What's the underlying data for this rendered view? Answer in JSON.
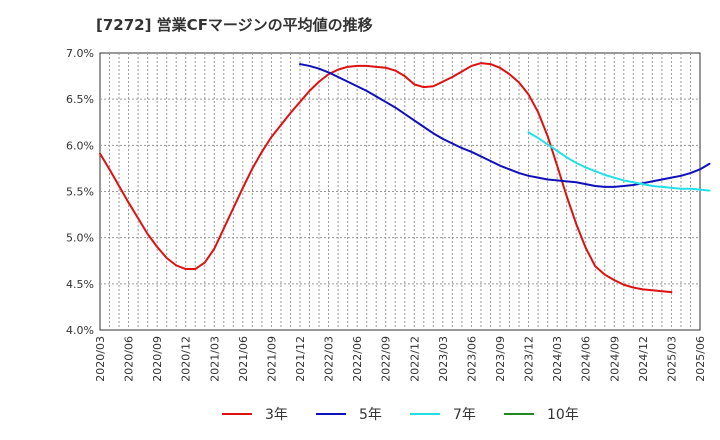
{
  "chart_data": {
    "type": "line",
    "title": "[7272]  営業CFマージンの平均値の推移",
    "xlabel": "",
    "ylabel": "",
    "ylim": [
      4.0,
      7.0
    ],
    "y_ticks": [
      "7.0%",
      "6.5%",
      "6.0%",
      "5.5%",
      "5.0%",
      "4.5%",
      "4.0%"
    ],
    "x_ticks": [
      "2020/03",
      "2020/06",
      "2020/09",
      "2020/12",
      "2021/03",
      "2021/06",
      "2021/09",
      "2021/12",
      "2022/03",
      "2022/06",
      "2022/09",
      "2022/12",
      "2023/03",
      "2023/06",
      "2023/09",
      "2023/12",
      "2024/03",
      "2024/06",
      "2024/09",
      "2024/12",
      "2025/03",
      "2025/06"
    ],
    "grid": true,
    "legend_position": "bottom",
    "series": [
      {
        "name": "3年",
        "color": "#dd1111",
        "points": [
          [
            "2020/03",
            5.91
          ],
          [
            "2020/04",
            5.74
          ],
          [
            "2020/05",
            5.56
          ],
          [
            "2020/06",
            5.38
          ],
          [
            "2020/07",
            5.21
          ],
          [
            "2020/08",
            5.04
          ],
          [
            "2020/09",
            4.9
          ],
          [
            "2020/10",
            4.78
          ],
          [
            "2020/11",
            4.7
          ],
          [
            "2020/12",
            4.66
          ],
          [
            "2021/01",
            4.66
          ],
          [
            "2021/02",
            4.73
          ],
          [
            "2021/03",
            4.88
          ],
          [
            "2021/04",
            5.1
          ],
          [
            "2021/05",
            5.32
          ],
          [
            "2021/06",
            5.54
          ],
          [
            "2021/07",
            5.75
          ],
          [
            "2021/08",
            5.93
          ],
          [
            "2021/09",
            6.09
          ],
          [
            "2021/10",
            6.22
          ],
          [
            "2021/11",
            6.35
          ],
          [
            "2021/12",
            6.47
          ],
          [
            "2022/01",
            6.59
          ],
          [
            "2022/02",
            6.69
          ],
          [
            "2022/03",
            6.77
          ],
          [
            "2022/04",
            6.82
          ],
          [
            "2022/05",
            6.85
          ],
          [
            "2022/06",
            6.86
          ],
          [
            "2022/07",
            6.86
          ],
          [
            "2022/08",
            6.85
          ],
          [
            "2022/09",
            6.84
          ],
          [
            "2022/10",
            6.81
          ],
          [
            "2022/11",
            6.75
          ],
          [
            "2022/12",
            6.66
          ],
          [
            "2023/01",
            6.63
          ],
          [
            "2023/02",
            6.64
          ],
          [
            "2023/03",
            6.69
          ],
          [
            "2023/04",
            6.74
          ],
          [
            "2023/05",
            6.8
          ],
          [
            "2023/06",
            6.86
          ],
          [
            "2023/07",
            6.89
          ],
          [
            "2023/08",
            6.88
          ],
          [
            "2023/09",
            6.84
          ],
          [
            "2023/10",
            6.77
          ],
          [
            "2023/11",
            6.68
          ],
          [
            "2023/12",
            6.55
          ],
          [
            "2024/01",
            6.36
          ],
          [
            "2024/02",
            6.1
          ],
          [
            "2024/03",
            5.78
          ],
          [
            "2024/04",
            5.45
          ],
          [
            "2024/05",
            5.15
          ],
          [
            "2024/06",
            4.89
          ],
          [
            "2024/07",
            4.69
          ],
          [
            "2024/08",
            4.6
          ],
          [
            "2024/09",
            4.54
          ],
          [
            "2024/10",
            4.49
          ],
          [
            "2024/11",
            4.46
          ],
          [
            "2024/12",
            4.44
          ],
          [
            "2025/01",
            4.43
          ],
          [
            "2025/02",
            4.42
          ],
          [
            "2025/03",
            4.41
          ]
        ]
      },
      {
        "name": "5年",
        "color": "#1010bb",
        "points": [
          [
            "2021/12",
            6.88
          ],
          [
            "2022/01",
            6.86
          ],
          [
            "2022/02",
            6.83
          ],
          [
            "2022/03",
            6.79
          ],
          [
            "2022/04",
            6.74
          ],
          [
            "2022/05",
            6.69
          ],
          [
            "2022/06",
            6.64
          ],
          [
            "2022/07",
            6.59
          ],
          [
            "2022/08",
            6.53
          ],
          [
            "2022/09",
            6.47
          ],
          [
            "2022/10",
            6.41
          ],
          [
            "2022/11",
            6.34
          ],
          [
            "2022/12",
            6.27
          ],
          [
            "2023/01",
            6.2
          ],
          [
            "2023/02",
            6.13
          ],
          [
            "2023/03",
            6.07
          ],
          [
            "2023/04",
            6.02
          ],
          [
            "2023/05",
            5.97
          ],
          [
            "2023/06",
            5.93
          ],
          [
            "2023/07",
            5.88
          ],
          [
            "2023/08",
            5.83
          ],
          [
            "2023/09",
            5.78
          ],
          [
            "2023/10",
            5.74
          ],
          [
            "2023/11",
            5.7
          ],
          [
            "2023/12",
            5.67
          ],
          [
            "2024/01",
            5.65
          ],
          [
            "2024/02",
            5.63
          ],
          [
            "2024/03",
            5.62
          ],
          [
            "2024/04",
            5.61
          ],
          [
            "2024/05",
            5.6
          ],
          [
            "2024/06",
            5.58
          ],
          [
            "2024/07",
            5.56
          ],
          [
            "2024/08",
            5.55
          ],
          [
            "2024/09",
            5.55
          ],
          [
            "2024/10",
            5.56
          ],
          [
            "2024/11",
            5.57
          ],
          [
            "2024/12",
            5.59
          ],
          [
            "2025/01",
            5.61
          ],
          [
            "2025/02",
            5.63
          ],
          [
            "2025/03",
            5.65
          ],
          [
            "2025/04",
            5.67
          ],
          [
            "2025/05",
            5.7
          ],
          [
            "2025/06",
            5.74
          ],
          [
            "2025/07",
            5.8
          ]
        ]
      },
      {
        "name": "7年",
        "color": "#22e0e8",
        "points": [
          [
            "2023/12",
            6.14
          ],
          [
            "2024/01",
            6.08
          ],
          [
            "2024/02",
            6.01
          ],
          [
            "2024/03",
            5.94
          ],
          [
            "2024/04",
            5.87
          ],
          [
            "2024/05",
            5.81
          ],
          [
            "2024/06",
            5.76
          ],
          [
            "2024/07",
            5.72
          ],
          [
            "2024/08",
            5.68
          ],
          [
            "2024/09",
            5.65
          ],
          [
            "2024/10",
            5.62
          ],
          [
            "2024/11",
            5.6
          ],
          [
            "2024/12",
            5.58
          ],
          [
            "2025/01",
            5.56
          ],
          [
            "2025/02",
            5.55
          ],
          [
            "2025/03",
            5.54
          ],
          [
            "2025/04",
            5.53
          ],
          [
            "2025/05",
            5.53
          ],
          [
            "2025/06",
            5.52
          ],
          [
            "2025/07",
            5.51
          ]
        ]
      },
      {
        "name": "10年",
        "color": "#228822",
        "points": []
      }
    ]
  }
}
